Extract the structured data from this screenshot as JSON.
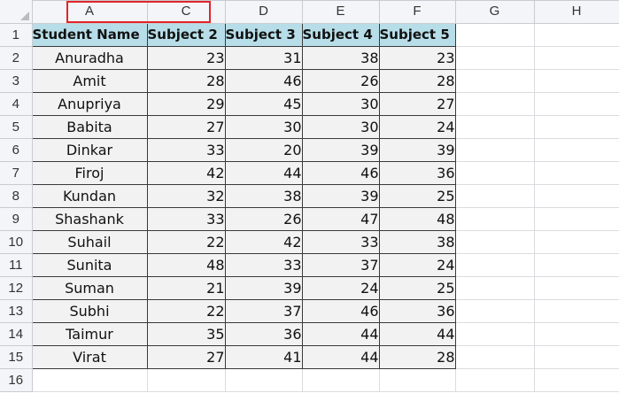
{
  "columns": [
    "A",
    "C",
    "D",
    "E",
    "F",
    "G",
    "H"
  ],
  "row_numbers": [
    "1",
    "2",
    "3",
    "4",
    "5",
    "6",
    "7",
    "8",
    "9",
    "10",
    "11",
    "12",
    "13",
    "14",
    "15",
    "16"
  ],
  "headers": [
    "Student Name",
    "Subject 2",
    "Subject 3",
    "Subject 4",
    "Subject 5"
  ],
  "rows": [
    {
      "name": "Anuradha",
      "s2": "23",
      "s3": "31",
      "s4": "38",
      "s5": "23"
    },
    {
      "name": "Amit",
      "s2": "28",
      "s3": "46",
      "s4": "26",
      "s5": "28"
    },
    {
      "name": "Anupriya",
      "s2": "29",
      "s3": "45",
      "s4": "30",
      "s5": "27"
    },
    {
      "name": "Babita",
      "s2": "27",
      "s3": "30",
      "s4": "30",
      "s5": "24"
    },
    {
      "name": "Dinkar",
      "s2": "33",
      "s3": "20",
      "s4": "39",
      "s5": "39"
    },
    {
      "name": "Firoj",
      "s2": "42",
      "s3": "44",
      "s4": "46",
      "s5": "36"
    },
    {
      "name": "Kundan",
      "s2": "32",
      "s3": "38",
      "s4": "39",
      "s5": "25"
    },
    {
      "name": "Shashank",
      "s2": "33",
      "s3": "26",
      "s4": "47",
      "s5": "48"
    },
    {
      "name": "Suhail",
      "s2": "22",
      "s3": "42",
      "s4": "33",
      "s5": "38"
    },
    {
      "name": "Sunita",
      "s2": "48",
      "s3": "33",
      "s4": "37",
      "s5": "24"
    },
    {
      "name": "Suman",
      "s2": "21",
      "s3": "39",
      "s4": "24",
      "s5": "25"
    },
    {
      "name": "Subhi",
      "s2": "22",
      "s3": "37",
      "s4": "46",
      "s5": "36"
    },
    {
      "name": "Taimur",
      "s2": "35",
      "s3": "36",
      "s4": "44",
      "s5": "44"
    },
    {
      "name": "Virat",
      "s2": "27",
      "s3": "41",
      "s4": "44",
      "s5": "28"
    }
  ],
  "highlight_color": "#e0262a",
  "header_fill": "#b7dee8",
  "data_fill": "#f2f2f2"
}
